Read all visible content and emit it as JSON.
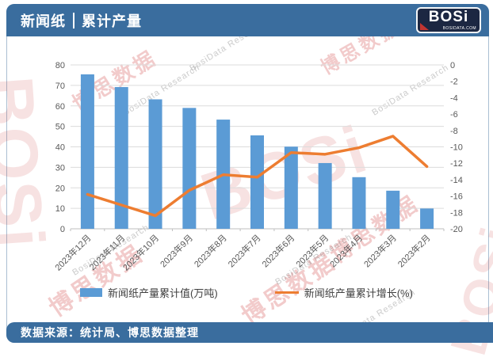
{
  "header": {
    "title_left": "新闻纸",
    "title_right": "累计产量"
  },
  "logo": {
    "brand": "BOSi",
    "domain": "BOSIDATA.COM"
  },
  "colors": {
    "header_bg": "#3a6d9e",
    "footer_bg": "#3a6d9e",
    "bar_blue": "#5b9bd5",
    "line_orange": "#ed7d31",
    "axis_text": "#595959",
    "gridline": "#dcdcdc",
    "axis_line": "#bfbfbf"
  },
  "chart_data": {
    "type": "combo-bar-line",
    "categories": [
      "2023年12月",
      "2023年11月",
      "2023年10月",
      "2023年9月",
      "2023年8月",
      "2023年7月",
      "2023年6月",
      "2023年5月",
      "2023年4月",
      "2023年3月",
      "2023年2月"
    ],
    "series": [
      {
        "name": "新闻纸产量累计值(万吨)",
        "type": "bar",
        "axis": "left",
        "color": "#5b9bd5",
        "values": [
          75.4,
          69.2,
          63.2,
          59.0,
          53.3,
          45.6,
          40.1,
          32.1,
          25.2,
          18.6,
          9.9
        ]
      },
      {
        "name": "新闻纸产量累计增长(%)",
        "type": "line",
        "axis": "right",
        "color": "#ed7d31",
        "values": [
          -15.8,
          -17.1,
          -18.4,
          -15.3,
          -13.4,
          -13.7,
          -10.7,
          -10.9,
          -10.1,
          -8.7,
          -12.4
        ]
      }
    ],
    "left_axis": {
      "min": 0,
      "max": 80,
      "step": 10,
      "ticks": [
        "0",
        "10",
        "20",
        "30",
        "40",
        "50",
        "60",
        "70",
        "80"
      ]
    },
    "right_axis": {
      "min": -20,
      "max": 0,
      "step": 2,
      "ticks": [
        "0",
        "-2",
        "-4",
        "-6",
        "-8",
        "-10",
        "-12",
        "-14",
        "-16",
        "-18",
        "-20"
      ]
    },
    "grid": true,
    "legend_position": "bottom"
  },
  "footer": {
    "text": "数据来源：统计局、博思数据整理"
  },
  "watermarks": {
    "brand": "BOSi",
    "cn": "博思数据",
    "en": "BosiData Research"
  }
}
